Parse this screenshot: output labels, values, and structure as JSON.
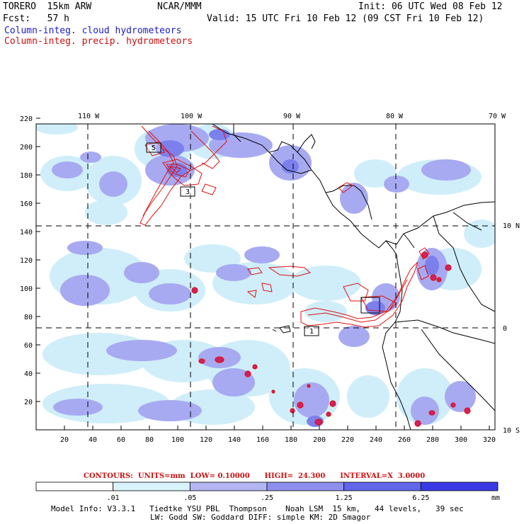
{
  "header": {
    "model": "TORERO  15km ARW",
    "center": "NCAR/MMM",
    "init": "Init: 06 UTC Wed 08 Feb 12",
    "fcst": "Fcst:   57 h",
    "valid": "Valid: 15 UTC Fri 10 Feb 12 (09 CST Fri 10 Feb 12)",
    "field1": "Column-integ. cloud hydrometeors",
    "field2": "Column-integ. precip. hydrometeors"
  },
  "axes": {
    "lon_labels": [
      "110 W",
      "100 W",
      "90 W",
      "80 W",
      "70 W"
    ],
    "lat_labels": [
      "10 N",
      "0",
      "10 S"
    ],
    "x_ticks": [
      "20",
      "40",
      "60",
      "80",
      "100",
      "120",
      "140",
      "160",
      "180",
      "200",
      "220",
      "240",
      "260",
      "280",
      "300",
      "320"
    ],
    "y_ticks": [
      "220",
      "200",
      "180",
      "160",
      "140",
      "120",
      "100",
      "80",
      "60",
      "40",
      "20"
    ]
  },
  "contours": {
    "label": "CONTOURS:",
    "units": "UNITS=mm",
    "low": "LOW= 0.10000",
    "high": "HIGH=  24.300",
    "interval": "INTERVAL=X  3.0000"
  },
  "colorbar": {
    "colors": [
      "#ffffff",
      "#d9f3fb",
      "#b3b6f3",
      "#8e90ee",
      "#6266ea",
      "#3a3ae6"
    ],
    "labels": [
      ".01",
      ".05",
      ".25",
      "1.25",
      "6.25"
    ],
    "unit": "mm"
  },
  "footer": {
    "line1": "Model Info: V3.3.1   Tiedtke YSU PBL  Thompson    Noah LSM  15 km,   44 levels,   39 sec",
    "line2": "LW: Godd SW: Goddard DIFF: simple KM: 2D Smagor"
  },
  "box_labels": [
    "5",
    "3",
    "1"
  ],
  "colors": {
    "cloud_light": "#cfeef9",
    "cloud_mid": "#a7aaf1",
    "cloud_dark": "#7c80ec",
    "precip": "#e01010",
    "coast": "#000000"
  }
}
